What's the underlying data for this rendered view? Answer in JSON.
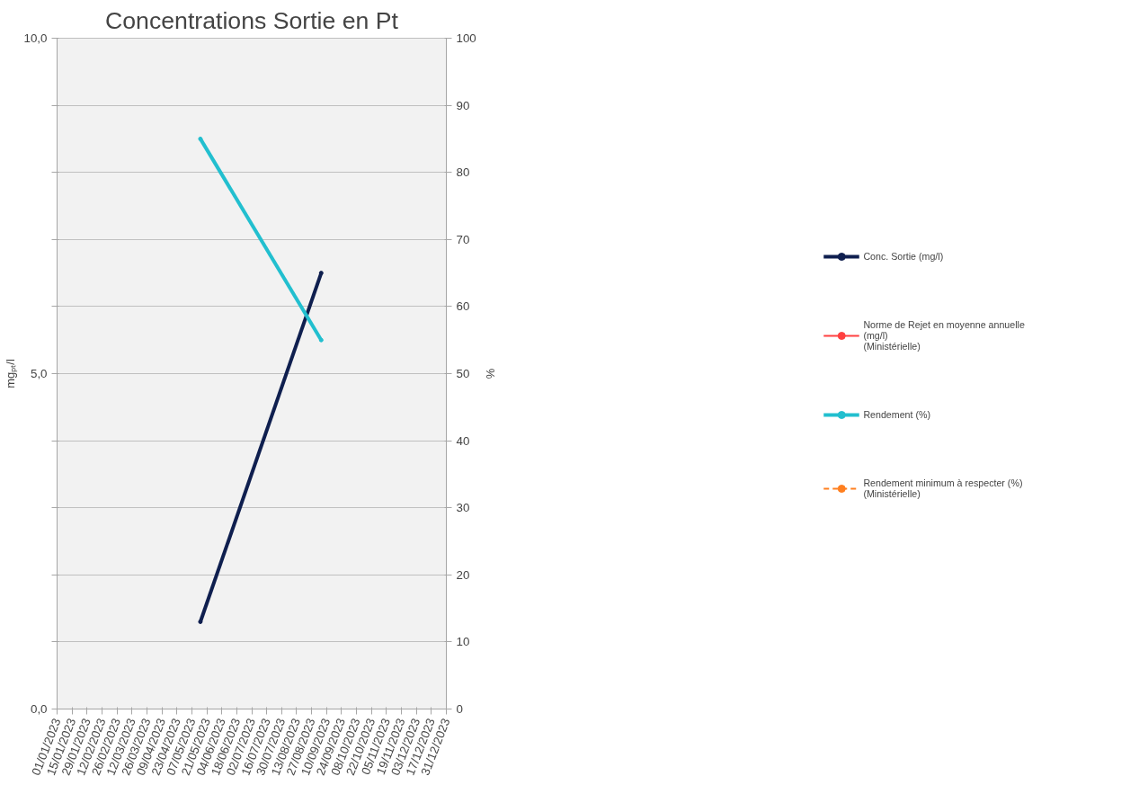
{
  "chart_data": {
    "type": "line",
    "title": "Concentrations Sortie en Pt",
    "ylabel": "mgₚₜ/l",
    "y2label": "%",
    "x": [
      "2023-05-15",
      "2023-09-05"
    ],
    "series": [
      {
        "name": "Conc. Sortie (mg/l)",
        "color": "#0f1f4f",
        "values": [
          1.3,
          6.5
        ]
      },
      {
        "name": "Norme de Rejet en moyenne annuelle\n(mg/l)\n(Ministérielle)",
        "color": "#ff4040",
        "values": [
          null,
          null
        ]
      },
      {
        "name": "Rendement (%)",
        "color": "#22bfcf",
        "values": [
          85,
          55
        ],
        "axis": "y2"
      },
      {
        "name": "Rendement minimum à respecter (%)\n(Ministérielle)",
        "color": "#ff7f1f",
        "values": [
          null,
          null
        ],
        "axis": "y2",
        "line_style": "dashed"
      }
    ],
    "xlim": [
      "2023-01-01",
      "2023-12-31"
    ],
    "xticks": [
      {
        "value": "2023-01-01",
        "label": "01/01/2023"
      },
      {
        "value": "2023-01-15",
        "label": "15/01/2023"
      },
      {
        "value": "2023-01-29",
        "label": "29/01/2023"
      },
      {
        "value": "2023-02-12",
        "label": "12/02/2023"
      },
      {
        "value": "2023-02-26",
        "label": "26/02/2023"
      },
      {
        "value": "2023-03-12",
        "label": "12/03/2023"
      },
      {
        "value": "2023-03-26",
        "label": "26/03/2023"
      },
      {
        "value": "2023-04-09",
        "label": "09/04/2023"
      },
      {
        "value": "2023-04-23",
        "label": "23/04/2023"
      },
      {
        "value": "2023-05-07",
        "label": "07/05/2023"
      },
      {
        "value": "2023-05-21",
        "label": "21/05/2023"
      },
      {
        "value": "2023-06-04",
        "label": "04/06/2023"
      },
      {
        "value": "2023-06-18",
        "label": "18/06/2023"
      },
      {
        "value": "2023-07-02",
        "label": "02/07/2023"
      },
      {
        "value": "2023-07-16",
        "label": "16/07/2023"
      },
      {
        "value": "2023-07-30",
        "label": "30/07/2023"
      },
      {
        "value": "2023-08-13",
        "label": "13/08/2023"
      },
      {
        "value": "2023-08-27",
        "label": "27/08/2023"
      },
      {
        "value": "2023-09-10",
        "label": "10/09/2023"
      },
      {
        "value": "2023-09-24",
        "label": "24/09/2023"
      },
      {
        "value": "2023-10-08",
        "label": "08/10/2023"
      },
      {
        "value": "2023-10-22",
        "label": "22/10/2023"
      },
      {
        "value": "2023-11-05",
        "label": "05/11/2023"
      },
      {
        "value": "2023-11-19",
        "label": "19/11/2023"
      },
      {
        "value": "2023-12-03",
        "label": "03/12/2023"
      },
      {
        "value": "2023-12-17",
        "label": "17/12/2023"
      },
      {
        "value": "2023-12-31",
        "label": "31/12/2023"
      }
    ],
    "ylim": [
      0,
      10
    ],
    "yticks": [
      {
        "value": 0,
        "label": "0,0"
      },
      {
        "value": 1,
        "label": null
      },
      {
        "value": 2,
        "label": null
      },
      {
        "value": 3,
        "label": null
      },
      {
        "value": 4,
        "label": null
      },
      {
        "value": 5,
        "label": "5,0"
      },
      {
        "value": 6,
        "label": null
      },
      {
        "value": 7,
        "label": null
      },
      {
        "value": 8,
        "label": null
      },
      {
        "value": 9,
        "label": null
      },
      {
        "value": 10,
        "label": "10,0"
      }
    ],
    "y2lim": [
      0,
      100
    ],
    "y2ticks": [
      0,
      10,
      20,
      30,
      40,
      50,
      60,
      70,
      80,
      90,
      100
    ],
    "grid": "y",
    "legend": "right",
    "marker": "circle",
    "line_style": "solid"
  }
}
